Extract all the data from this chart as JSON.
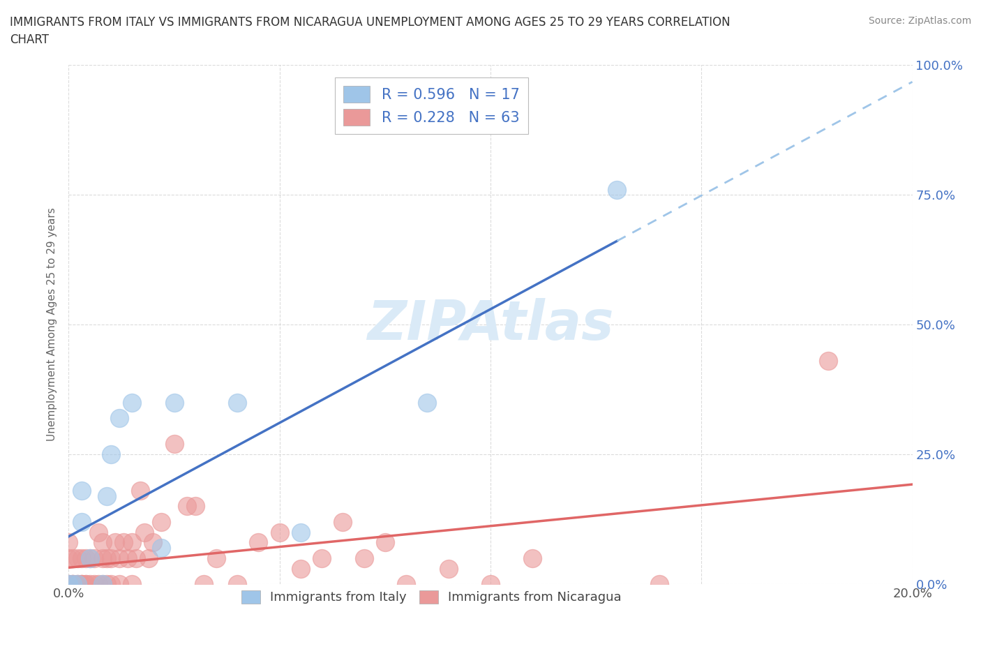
{
  "title_line1": "IMMIGRANTS FROM ITALY VS IMMIGRANTS FROM NICARAGUA UNEMPLOYMENT AMONG AGES 25 TO 29 YEARS CORRELATION",
  "title_line2": "CHART",
  "source_text": "Source: ZipAtlas.com",
  "ylabel": "Unemployment Among Ages 25 to 29 years",
  "xlim": [
    0.0,
    0.2
  ],
  "ylim": [
    0.0,
    1.0
  ],
  "italy_color": "#9fc5e8",
  "italy_edge_color": "#9fc5e8",
  "nicaragua_color": "#ea9999",
  "nicaragua_edge_color": "#ea9999",
  "italy_line_color": "#4472c4",
  "nicaragua_line_color": "#e06666",
  "dashed_line_color": "#9fc5e8",
  "italy_R": 0.596,
  "italy_N": 17,
  "nicaragua_R": 0.228,
  "nicaragua_N": 63,
  "watermark_text": "ZIPAtlas",
  "watermark_color": "#daeaf7",
  "legend_italy_label": "R = 0.596   N = 17",
  "legend_nicaragua_label": "R = 0.228   N = 63",
  "italy_x": [
    0.0,
    0.001,
    0.002,
    0.003,
    0.003,
    0.005,
    0.008,
    0.009,
    0.01,
    0.012,
    0.015,
    0.022,
    0.025,
    0.04,
    0.055,
    0.085,
    0.13
  ],
  "italy_y": [
    0.0,
    0.0,
    0.0,
    0.12,
    0.18,
    0.05,
    0.0,
    0.17,
    0.25,
    0.32,
    0.35,
    0.07,
    0.35,
    0.35,
    0.1,
    0.35,
    0.76
  ],
  "nicaragua_x": [
    0.0,
    0.0,
    0.0,
    0.0,
    0.001,
    0.001,
    0.001,
    0.001,
    0.002,
    0.002,
    0.002,
    0.003,
    0.003,
    0.003,
    0.003,
    0.004,
    0.004,
    0.004,
    0.005,
    0.005,
    0.006,
    0.006,
    0.007,
    0.007,
    0.008,
    0.008,
    0.008,
    0.009,
    0.009,
    0.01,
    0.01,
    0.011,
    0.012,
    0.012,
    0.013,
    0.014,
    0.015,
    0.015,
    0.016,
    0.017,
    0.018,
    0.019,
    0.02,
    0.022,
    0.025,
    0.028,
    0.03,
    0.032,
    0.035,
    0.04,
    0.045,
    0.05,
    0.055,
    0.06,
    0.065,
    0.07,
    0.075,
    0.08,
    0.09,
    0.1,
    0.11,
    0.14,
    0.18
  ],
  "nicaragua_y": [
    0.0,
    0.0,
    0.05,
    0.08,
    0.0,
    0.0,
    0.0,
    0.05,
    0.0,
    0.0,
    0.05,
    0.0,
    0.0,
    0.0,
    0.05,
    0.0,
    0.0,
    0.05,
    0.0,
    0.05,
    0.0,
    0.05,
    0.0,
    0.1,
    0.0,
    0.05,
    0.08,
    0.0,
    0.05,
    0.0,
    0.05,
    0.08,
    0.0,
    0.05,
    0.08,
    0.05,
    0.0,
    0.08,
    0.05,
    0.18,
    0.1,
    0.05,
    0.08,
    0.12,
    0.27,
    0.15,
    0.15,
    0.0,
    0.05,
    0.0,
    0.08,
    0.1,
    0.03,
    0.05,
    0.12,
    0.05,
    0.08,
    0.0,
    0.03,
    0.0,
    0.05,
    0.0,
    0.43
  ],
  "background_color": "#ffffff",
  "grid_color": "#cccccc",
  "right_axis_label_color": "#4472c4"
}
